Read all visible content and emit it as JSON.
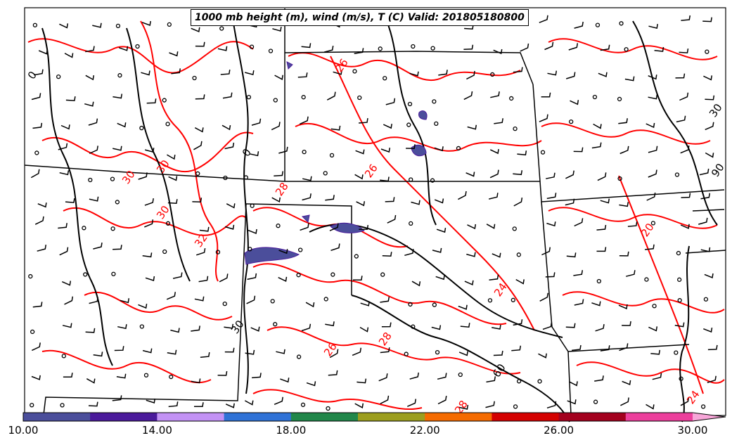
{
  "title": "1000 mb height (m), wind (m/s), T (C) Valid: 201805180800",
  "colorbar": {
    "tick_labels": [
      "10.00",
      "14.00",
      "18.00",
      "22.00",
      "26.00",
      "30.00"
    ],
    "colors": [
      "#4b4e9b",
      "#4b1a9b",
      "#c392f5",
      "#2f72d6",
      "#21874a",
      "#9c9e1e",
      "#f56b00",
      "#d40000",
      "#a3001e",
      "#ec3f9c",
      "#f7a6d8"
    ]
  },
  "contour_labels": {
    "temperature": [
      "26",
      "26",
      "28",
      "30",
      "32",
      "30",
      "28",
      "26",
      "24",
      "28",
      "24",
      "20",
      "30"
    ],
    "height": [
      "0",
      "0",
      "30",
      "30",
      "60",
      "90"
    ]
  },
  "colors": {
    "temperature_contour": "#ff0000",
    "height_contour": "#000000",
    "boundaries": "#000000"
  }
}
